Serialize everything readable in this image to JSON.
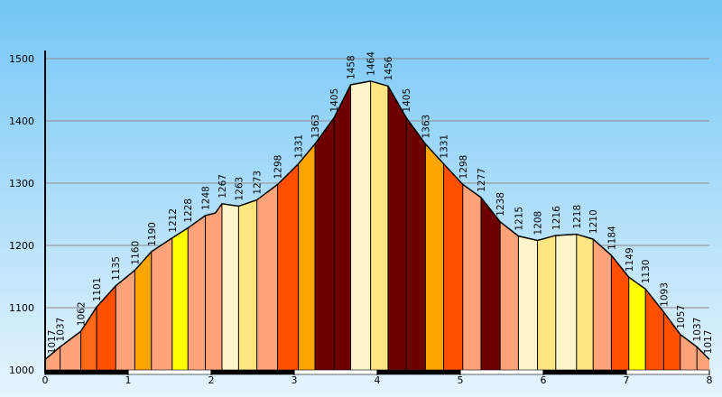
{
  "chart_data": {
    "type": "area",
    "title": "",
    "xlabel": "",
    "ylabel": "",
    "xlim": [
      0,
      8
    ],
    "ylim": [
      1000,
      1500
    ],
    "x_ticks": [
      "0",
      "1",
      "2",
      "3",
      "4",
      "5",
      "6",
      "7",
      "8"
    ],
    "y_ticks": [
      "1000",
      "1100",
      "1200",
      "1300",
      "1400",
      "1500"
    ],
    "grid": true,
    "background_colors": [
      "#74c6f6",
      "#e6f5fe"
    ],
    "profile": [
      [
        0.0,
        1017
      ],
      [
        0.18,
        1037
      ],
      [
        0.43,
        1062
      ],
      [
        0.62,
        1101
      ],
      [
        0.85,
        1135
      ],
      [
        1.08,
        1160
      ],
      [
        1.28,
        1190
      ],
      [
        1.53,
        1212
      ],
      [
        1.72,
        1228
      ],
      [
        1.93,
        1248
      ],
      [
        2.05,
        1252
      ],
      [
        2.13,
        1267
      ],
      [
        2.33,
        1263
      ],
      [
        2.55,
        1273
      ],
      [
        2.8,
        1298
      ],
      [
        3.05,
        1331
      ],
      [
        3.25,
        1363
      ],
      [
        3.48,
        1405
      ],
      [
        3.68,
        1458
      ],
      [
        3.92,
        1464
      ],
      [
        4.13,
        1456
      ],
      [
        4.35,
        1405
      ],
      [
        4.58,
        1363
      ],
      [
        4.8,
        1331
      ],
      [
        5.03,
        1298
      ],
      [
        5.25,
        1277
      ],
      [
        5.48,
        1238
      ],
      [
        5.7,
        1215
      ],
      [
        5.93,
        1208
      ],
      [
        6.15,
        1216
      ],
      [
        6.4,
        1218
      ],
      [
        6.6,
        1210
      ],
      [
        6.82,
        1184
      ],
      [
        7.03,
        1149
      ],
      [
        7.23,
        1130
      ],
      [
        7.45,
        1093
      ],
      [
        7.65,
        1057
      ],
      [
        7.85,
        1037
      ],
      [
        8.0,
        1017
      ]
    ],
    "labels": [
      {
        "x": 0.0,
        "text": "1017"
      },
      {
        "x": 0.18,
        "text": "1037"
      },
      {
        "x": 0.43,
        "text": "1062"
      },
      {
        "x": 0.62,
        "text": "1101"
      },
      {
        "x": 0.85,
        "text": "1135"
      },
      {
        "x": 1.08,
        "text": "1160"
      },
      {
        "x": 1.28,
        "text": "1190"
      },
      {
        "x": 1.53,
        "text": "1212"
      },
      {
        "x": 1.72,
        "text": "1228"
      },
      {
        "x": 1.93,
        "text": "1248"
      },
      {
        "x": 2.13,
        "text": "1267"
      },
      {
        "x": 2.33,
        "text": "1263"
      },
      {
        "x": 2.55,
        "text": "1273"
      },
      {
        "x": 2.8,
        "text": "1298"
      },
      {
        "x": 3.05,
        "text": "1331"
      },
      {
        "x": 3.25,
        "text": "1363"
      },
      {
        "x": 3.48,
        "text": "1405"
      },
      {
        "x": 3.68,
        "text": "1458"
      },
      {
        "x": 3.92,
        "text": "1464"
      },
      {
        "x": 4.13,
        "text": "1456"
      },
      {
        "x": 4.35,
        "text": "1405"
      },
      {
        "x": 4.58,
        "text": "1363"
      },
      {
        "x": 4.8,
        "text": "1331"
      },
      {
        "x": 5.03,
        "text": "1298"
      },
      {
        "x": 5.25,
        "text": "1277"
      },
      {
        "x": 5.48,
        "text": "1238"
      },
      {
        "x": 5.7,
        "text": "1215"
      },
      {
        "x": 5.93,
        "text": "1208"
      },
      {
        "x": 6.15,
        "text": "1216"
      },
      {
        "x": 6.4,
        "text": "1218"
      },
      {
        "x": 6.6,
        "text": "1210"
      },
      {
        "x": 6.82,
        "text": "1184"
      },
      {
        "x": 7.03,
        "text": "1149"
      },
      {
        "x": 7.23,
        "text": "1130"
      },
      {
        "x": 7.45,
        "text": "1093"
      },
      {
        "x": 7.65,
        "text": "1057"
      },
      {
        "x": 7.85,
        "text": "1037"
      },
      {
        "x": 8.0,
        "text": "1017"
      }
    ],
    "segments": [
      {
        "x0": 0.0,
        "x1": 0.18,
        "color": "#ffa37a"
      },
      {
        "x0": 0.18,
        "x1": 0.43,
        "color": "#ffa37a"
      },
      {
        "x0": 0.43,
        "x1": 0.62,
        "color": "#ff6a1a"
      },
      {
        "x0": 0.62,
        "x1": 0.85,
        "color": "#ff5000"
      },
      {
        "x0": 0.85,
        "x1": 1.08,
        "color": "#ffa37a"
      },
      {
        "x0": 1.08,
        "x1": 1.28,
        "color": "#ffa500"
      },
      {
        "x0": 1.28,
        "x1": 1.53,
        "color": "#ffa37a"
      },
      {
        "x0": 1.53,
        "x1": 1.72,
        "color": "#ffff00"
      },
      {
        "x0": 1.72,
        "x1": 1.93,
        "color": "#ffa37a"
      },
      {
        "x0": 1.93,
        "x1": 2.13,
        "color": "#ffa37a"
      },
      {
        "x0": 2.13,
        "x1": 2.33,
        "color": "#fff5c8"
      },
      {
        "x0": 2.33,
        "x1": 2.55,
        "color": "#ffe680"
      },
      {
        "x0": 2.55,
        "x1": 2.8,
        "color": "#ffa37a"
      },
      {
        "x0": 2.8,
        "x1": 3.05,
        "color": "#ff5000"
      },
      {
        "x0": 3.05,
        "x1": 3.25,
        "color": "#ffa500"
      },
      {
        "x0": 3.25,
        "x1": 3.48,
        "color": "#6e0000"
      },
      {
        "x0": 3.48,
        "x1": 3.68,
        "color": "#6e0000"
      },
      {
        "x0": 3.68,
        "x1": 3.92,
        "color": "#fff5c8"
      },
      {
        "x0": 3.92,
        "x1": 4.13,
        "color": "#ffe680"
      },
      {
        "x0": 4.13,
        "x1": 4.35,
        "color": "#6e0000"
      },
      {
        "x0": 4.35,
        "x1": 4.58,
        "color": "#6e0000"
      },
      {
        "x0": 4.58,
        "x1": 4.8,
        "color": "#ffa500"
      },
      {
        "x0": 4.8,
        "x1": 5.03,
        "color": "#ff5000"
      },
      {
        "x0": 5.03,
        "x1": 5.25,
        "color": "#ffa37a"
      },
      {
        "x0": 5.25,
        "x1": 5.48,
        "color": "#6e0000"
      },
      {
        "x0": 5.48,
        "x1": 5.7,
        "color": "#ffa37a"
      },
      {
        "x0": 5.7,
        "x1": 5.93,
        "color": "#fff5c8"
      },
      {
        "x0": 5.93,
        "x1": 6.15,
        "color": "#ffe680"
      },
      {
        "x0": 6.15,
        "x1": 6.4,
        "color": "#fff5c8"
      },
      {
        "x0": 6.4,
        "x1": 6.6,
        "color": "#ffe680"
      },
      {
        "x0": 6.6,
        "x1": 6.82,
        "color": "#ffa37a"
      },
      {
        "x0": 6.82,
        "x1": 7.03,
        "color": "#ff5000"
      },
      {
        "x0": 7.03,
        "x1": 7.23,
        "color": "#ffff00"
      },
      {
        "x0": 7.23,
        "x1": 7.45,
        "color": "#ff5000"
      },
      {
        "x0": 7.45,
        "x1": 7.65,
        "color": "#ff5000"
      },
      {
        "x0": 7.65,
        "x1": 7.85,
        "color": "#ffa37a"
      },
      {
        "x0": 7.85,
        "x1": 8.0,
        "color": "#ffa37a"
      }
    ],
    "scale_bar": [
      {
        "x0": 0.0,
        "x1": 1.0,
        "color": "#000000"
      },
      {
        "x0": 1.0,
        "x1": 2.0,
        "color": "#ffffff"
      },
      {
        "x0": 2.0,
        "x1": 3.0,
        "color": "#000000"
      },
      {
        "x0": 3.0,
        "x1": 4.0,
        "color": "#ffffff"
      },
      {
        "x0": 4.0,
        "x1": 5.0,
        "color": "#000000"
      },
      {
        "x0": 5.0,
        "x1": 6.0,
        "color": "#ffffff"
      },
      {
        "x0": 6.0,
        "x1": 7.0,
        "color": "#000000"
      },
      {
        "x0": 7.0,
        "x1": 8.0,
        "color": "#ffffff"
      }
    ]
  }
}
